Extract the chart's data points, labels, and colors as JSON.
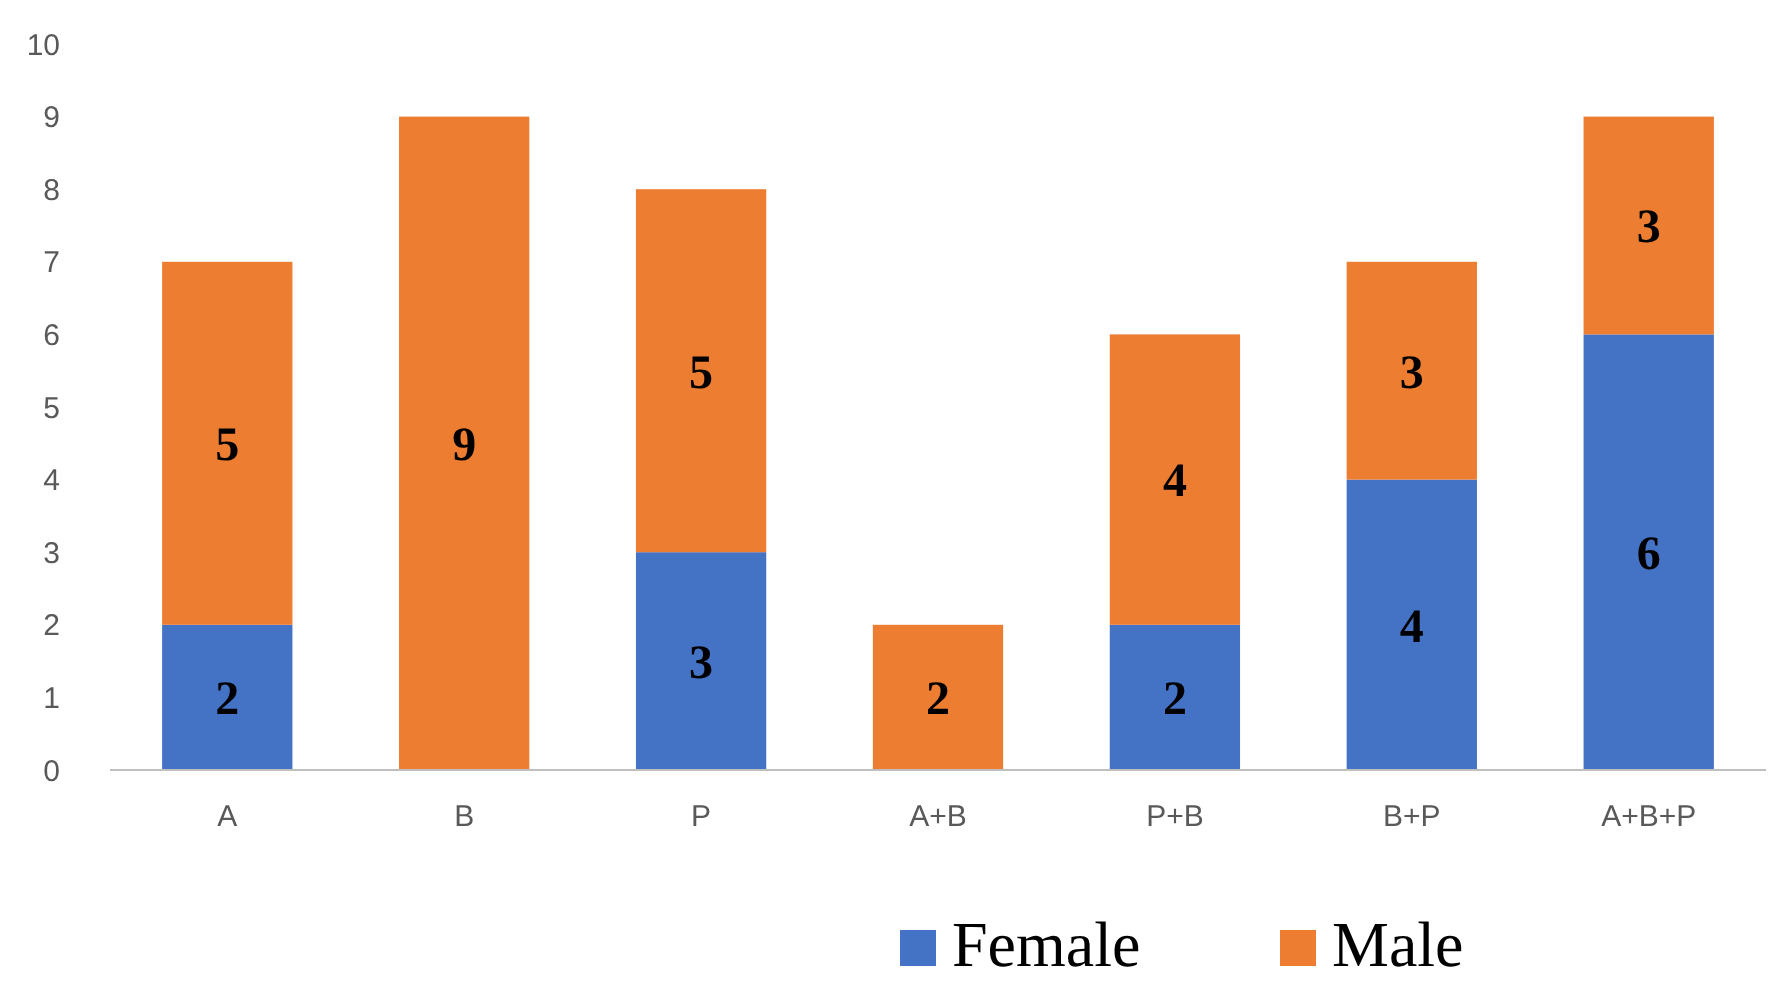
{
  "chart_data": {
    "type": "bar",
    "stacked": true,
    "categories": [
      "A",
      "B",
      "P",
      "A+B",
      "P+B",
      "B+P",
      "A+B+P"
    ],
    "series": [
      {
        "name": "Female",
        "color": "#4472c4",
        "values": [
          2,
          0,
          3,
          0,
          2,
          4,
          6
        ],
        "value_labels": [
          "2",
          null,
          "3",
          null,
          "2",
          "4",
          "6"
        ]
      },
      {
        "name": "Male",
        "color": "#ed7d31",
        "values": [
          5,
          9,
          5,
          2,
          4,
          3,
          3
        ],
        "value_labels": [
          "5",
          "9",
          "5",
          "2",
          "4",
          "3",
          "3"
        ]
      }
    ],
    "ylim": [
      0,
      10
    ],
    "yticks": [
      0,
      1,
      2,
      3,
      4,
      5,
      6,
      7,
      8,
      9,
      10
    ],
    "grid": false,
    "legend": "bottom"
  }
}
